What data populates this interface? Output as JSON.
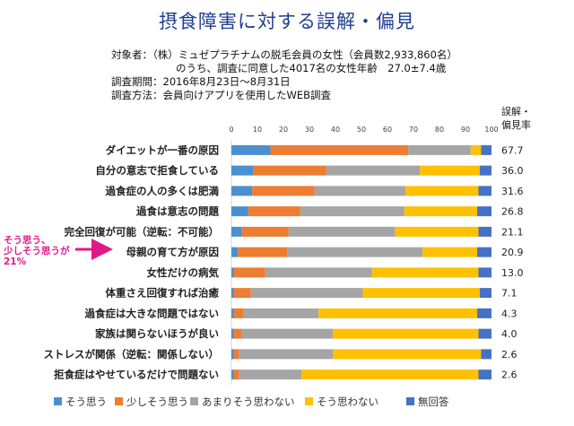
{
  "header": {
    "title": "摂食障害に対する誤解・偏見"
  },
  "meta": {
    "line1": "対象者：（株）ミュゼプラチナムの脱毛会員の女性（会員数2,933,860名）",
    "line2": "のうち、調査に同意した4017名の女性年齢　27.0±7.4歳",
    "line3": "調査期間：2016年8月23日～8月31日",
    "line4": "調査方法：会員向けアプリを使用したWEB調査"
  },
  "callout": {
    "line1": "そう思う、",
    "line2": "少しそう思うが",
    "line3": "21%",
    "color": "#e0198a"
  },
  "chart_data": {
    "type": "bar",
    "orientation": "horizontal",
    "stacked": true,
    "title": "",
    "xlim": [
      0,
      100
    ],
    "x_ticks": [
      0,
      10,
      20,
      30,
      40,
      50,
      60,
      70,
      80,
      90,
      100
    ],
    "grid": false,
    "legend_position": "bottom",
    "right_column_label_line1": "誤解・",
    "right_column_label_line2": "偏見率",
    "categories": [
      "ダイエットが一番の原因",
      "自分の意志で拒食している",
      "過食症の人の多くは肥満",
      "過食は意志の問題",
      "完全回復が可能（逆転：不可能）",
      "母親の育て方が原因",
      "女性だけの病気",
      "体重さえ回復すれば治癒",
      "過食症は大きな問題ではない",
      "家族は関らないほうが良い",
      "ストレスが関係（逆転：関係しない）",
      "拒食症はやせているだけで問題ない"
    ],
    "rates": [
      "67.7",
      "36.0",
      "31.6",
      "26.8",
      "21.1",
      "20.9",
      "13.0",
      "7.1",
      "4.3",
      "4.0",
      "2.6",
      "2.6"
    ],
    "series": [
      {
        "name": "そう思う",
        "color": "#4a90d0",
        "values": [
          15,
          8.5,
          8,
          6.5,
          4,
          2.5,
          1,
          1,
          1,
          1,
          1,
          1
        ]
      },
      {
        "name": "少しそう思う",
        "color": "#ed7d31",
        "values": [
          53,
          28,
          24,
          20,
          18,
          19,
          12,
          6.5,
          3.5,
          3,
          2,
          2
        ]
      },
      {
        "name": "あまりそう思わない",
        "color": "#a5a5a5",
        "values": [
          24,
          36,
          35,
          40,
          41,
          52,
          41,
          43,
          29,
          35,
          36,
          24
        ]
      },
      {
        "name": "そう思わない",
        "color": "#ffc000",
        "values": [
          4,
          23,
          28,
          28,
          32,
          21,
          41,
          45,
          61,
          56,
          57,
          68
        ]
      },
      {
        "name": "無回答",
        "color": "#4472c4",
        "values": [
          4,
          4.5,
          5,
          5.5,
          5,
          5.5,
          5,
          4.5,
          5.5,
          5,
          4,
          5
        ]
      }
    ]
  }
}
